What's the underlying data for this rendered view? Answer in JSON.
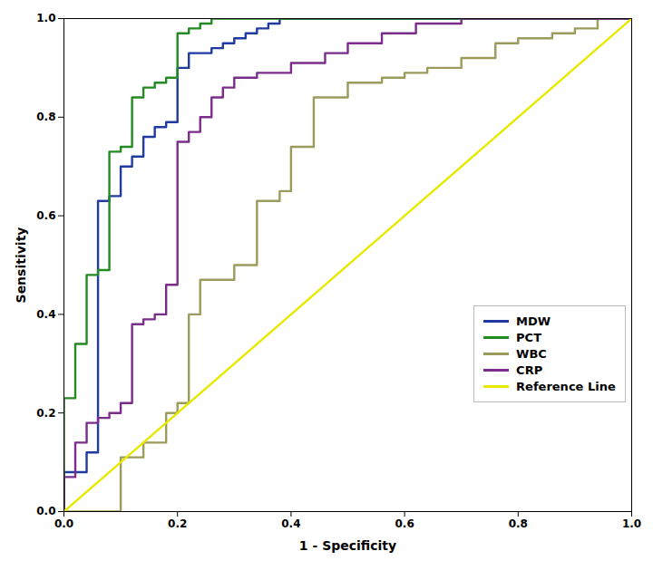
{
  "chart_data": {
    "type": "line",
    "title": "",
    "xlabel": "1 - Specificity",
    "ylabel": "Sensitivity",
    "xlim": [
      0.0,
      1.0
    ],
    "ylim": [
      0.0,
      1.0
    ],
    "xticks": [
      {
        "value": 0.0,
        "label": "0.0"
      },
      0.2,
      0.4,
      0.6,
      0.8,
      {
        "value": 1.0,
        "label": "1.0"
      }
    ],
    "yticks": [
      {
        "value": 0.0,
        "label": "0.0"
      },
      0.2,
      0.4,
      0.6,
      0.8,
      {
        "value": 1.0,
        "label": "1.0"
      }
    ],
    "grid": false,
    "legend": "lower right",
    "series": [
      {
        "name": "MDW",
        "color": "#1F3AA0",
        "x": [
          0.0,
          0.0,
          0.04,
          0.04,
          0.06,
          0.06,
          0.08,
          0.08,
          0.1,
          0.1,
          0.12,
          0.12,
          0.14,
          0.14,
          0.16,
          0.16,
          0.18,
          0.18,
          0.2,
          0.2,
          0.22,
          0.22,
          0.26,
          0.26,
          0.28,
          0.28,
          0.3,
          0.3,
          0.32,
          0.32,
          0.34,
          0.34,
          0.36,
          0.36,
          0.38,
          0.38,
          0.4,
          0.4,
          0.44,
          0.44,
          0.48,
          0.48,
          0.52,
          0.52,
          0.6,
          0.6,
          0.7,
          0.7,
          0.8,
          0.8,
          1.0
        ],
        "values": [
          0.0,
          0.08,
          0.08,
          0.12,
          0.12,
          0.63,
          0.63,
          0.64,
          0.64,
          0.7,
          0.7,
          0.72,
          0.72,
          0.76,
          0.76,
          0.78,
          0.78,
          0.79,
          0.79,
          0.9,
          0.9,
          0.93,
          0.93,
          0.94,
          0.94,
          0.95,
          0.95,
          0.96,
          0.96,
          0.97,
          0.97,
          0.98,
          0.98,
          0.99,
          0.99,
          1.0,
          1.0,
          1.0,
          1.0,
          1.0,
          1.0,
          1.0,
          1.0,
          1.0,
          1.0,
          1.0,
          1.0,
          1.0,
          1.0,
          1.0,
          1.0
        ]
      },
      {
        "name": "PCT",
        "color": "#228B22",
        "x": [
          0.0,
          0.0,
          0.02,
          0.02,
          0.04,
          0.04,
          0.06,
          0.06,
          0.08,
          0.08,
          0.1,
          0.1,
          0.12,
          0.12,
          0.14,
          0.14,
          0.16,
          0.16,
          0.18,
          0.18,
          0.2,
          0.2,
          0.22,
          0.22,
          0.24,
          0.24,
          0.26,
          0.26,
          0.3,
          0.3,
          0.34,
          0.34,
          0.4,
          0.4,
          0.5,
          0.5,
          0.6,
          0.6,
          0.7,
          0.7,
          0.8,
          0.8,
          1.0
        ],
        "values": [
          0.0,
          0.23,
          0.23,
          0.34,
          0.34,
          0.48,
          0.48,
          0.49,
          0.49,
          0.73,
          0.73,
          0.74,
          0.74,
          0.84,
          0.84,
          0.86,
          0.86,
          0.87,
          0.87,
          0.88,
          0.88,
          0.97,
          0.97,
          0.98,
          0.98,
          0.99,
          0.99,
          1.0,
          1.0,
          1.0,
          1.0,
          1.0,
          1.0,
          1.0,
          1.0,
          1.0,
          1.0,
          1.0,
          1.0,
          1.0,
          1.0,
          1.0,
          1.0
        ]
      },
      {
        "name": "WBC",
        "color": "#9B9B5B",
        "x": [
          0.0,
          0.1,
          0.1,
          0.14,
          0.14,
          0.18,
          0.18,
          0.2,
          0.2,
          0.22,
          0.22,
          0.24,
          0.24,
          0.3,
          0.3,
          0.34,
          0.34,
          0.38,
          0.38,
          0.4,
          0.4,
          0.44,
          0.44,
          0.5,
          0.5,
          0.56,
          0.56,
          0.6,
          0.6,
          0.64,
          0.64,
          0.7,
          0.7,
          0.76,
          0.76,
          0.8,
          0.8,
          0.86,
          0.86,
          0.9,
          0.9,
          0.94,
          0.94,
          1.0
        ],
        "values": [
          0.0,
          0.0,
          0.11,
          0.11,
          0.14,
          0.14,
          0.2,
          0.2,
          0.22,
          0.22,
          0.4,
          0.4,
          0.47,
          0.47,
          0.5,
          0.5,
          0.63,
          0.63,
          0.65,
          0.65,
          0.74,
          0.74,
          0.84,
          0.84,
          0.87,
          0.87,
          0.88,
          0.88,
          0.89,
          0.89,
          0.9,
          0.9,
          0.92,
          0.92,
          0.95,
          0.95,
          0.96,
          0.96,
          0.97,
          0.97,
          0.98,
          0.98,
          1.0,
          1.0
        ]
      },
      {
        "name": "CRP",
        "color": "#7B2D8B",
        "x": [
          0.0,
          0.0,
          0.02,
          0.02,
          0.04,
          0.04,
          0.06,
          0.06,
          0.08,
          0.08,
          0.1,
          0.1,
          0.12,
          0.12,
          0.14,
          0.14,
          0.16,
          0.16,
          0.18,
          0.18,
          0.2,
          0.2,
          0.22,
          0.22,
          0.24,
          0.24,
          0.26,
          0.26,
          0.28,
          0.28,
          0.3,
          0.3,
          0.34,
          0.34,
          0.4,
          0.4,
          0.46,
          0.46,
          0.5,
          0.5,
          0.56,
          0.56,
          0.62,
          0.62,
          0.7,
          0.7,
          0.8,
          0.8,
          1.0
        ],
        "values": [
          0.0,
          0.07,
          0.07,
          0.14,
          0.14,
          0.18,
          0.18,
          0.19,
          0.19,
          0.2,
          0.2,
          0.22,
          0.22,
          0.38,
          0.38,
          0.39,
          0.39,
          0.4,
          0.4,
          0.46,
          0.46,
          0.75,
          0.75,
          0.77,
          0.77,
          0.8,
          0.8,
          0.84,
          0.84,
          0.86,
          0.86,
          0.88,
          0.88,
          0.89,
          0.89,
          0.91,
          0.91,
          0.93,
          0.93,
          0.95,
          0.95,
          0.97,
          0.97,
          0.99,
          0.99,
          1.0,
          1.0,
          1.0,
          1.0
        ]
      },
      {
        "name": "Reference Line",
        "color": "#E8E800",
        "x": [
          0,
          1
        ],
        "values": [
          0,
          1
        ]
      }
    ]
  }
}
